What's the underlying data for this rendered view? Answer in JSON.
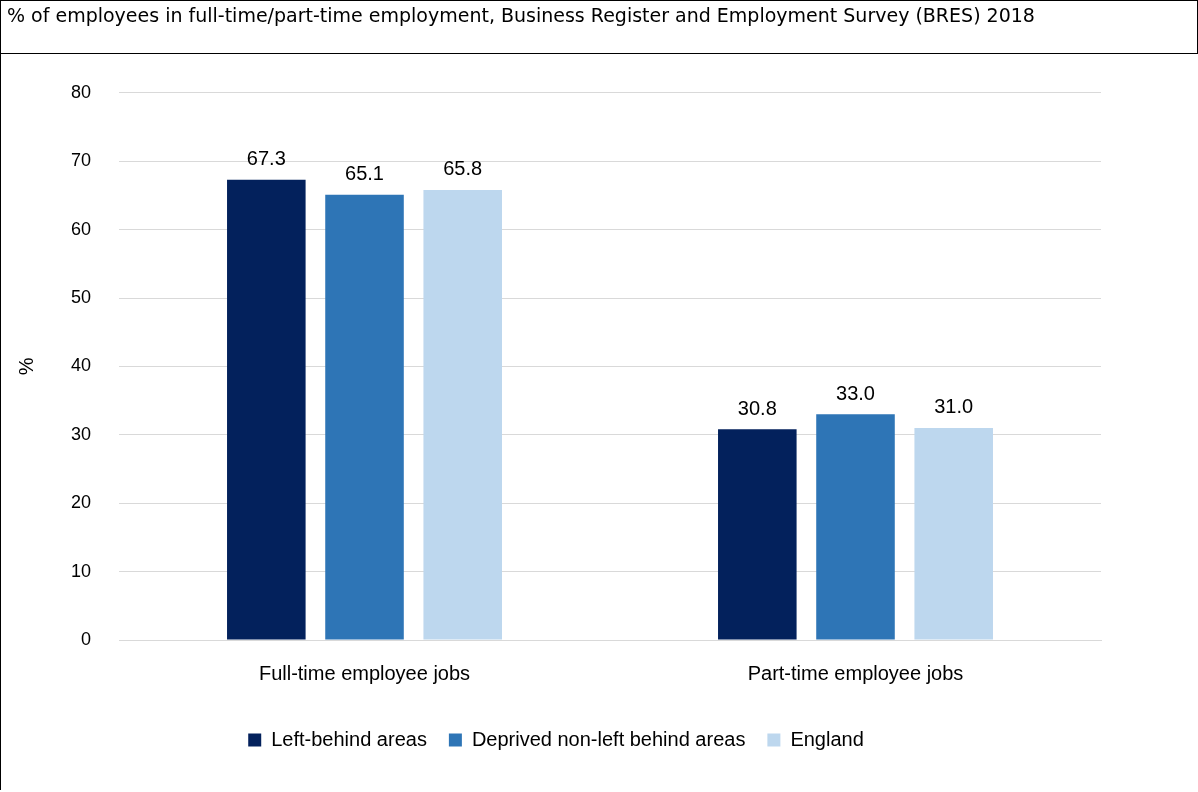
{
  "chart_data": {
    "type": "bar",
    "title": "% of employees in full-time/part-time employment, Business Register and Employment Survey (BRES) 2018",
    "ylabel": "%",
    "categories": [
      "Full-time employee jobs",
      "Part-time employee jobs"
    ],
    "series": [
      {
        "name": "Left-behind areas",
        "color": "#03215c",
        "values": [
          67.3,
          30.8
        ]
      },
      {
        "name": "Deprived non-left behind areas",
        "color": "#2e75b6",
        "values": [
          65.1,
          33.0
        ]
      },
      {
        "name": "England",
        "color": "#bdd7ee",
        "values": [
          65.8,
          31.0
        ]
      }
    ],
    "value_labels": [
      [
        "67.3",
        "30.8"
      ],
      [
        "65.1",
        "33.0"
      ],
      [
        "65.8",
        "31.0"
      ]
    ],
    "ylim": [
      0,
      80
    ],
    "yticks": [
      0,
      10,
      20,
      30,
      40,
      50,
      60,
      70,
      80
    ],
    "grid": "y",
    "legend": "bottom"
  }
}
